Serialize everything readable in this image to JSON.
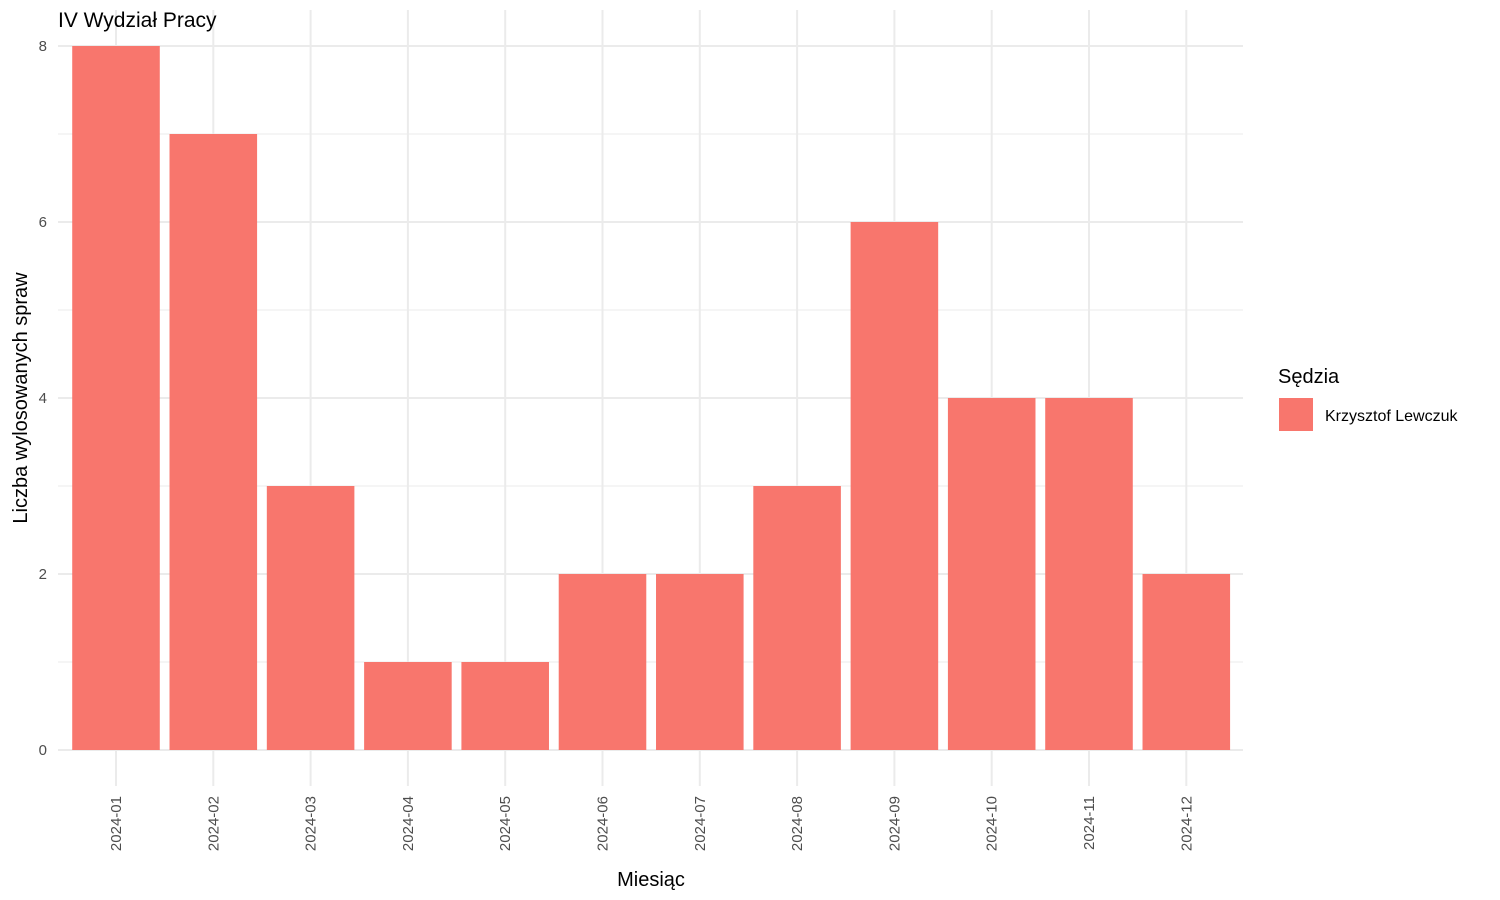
{
  "chart_data": {
    "type": "bar",
    "title": "IV Wydział Pracy",
    "xlabel": "Miesiąc",
    "ylabel": "Liczba wylosowanych spraw",
    "categories": [
      "2024-01",
      "2024-02",
      "2024-03",
      "2024-04",
      "2024-05",
      "2024-06",
      "2024-07",
      "2024-08",
      "2024-09",
      "2024-10",
      "2024-11",
      "2024-12"
    ],
    "series": [
      {
        "name": "Krzysztof Lewczuk",
        "values": [
          8,
          7,
          3,
          1,
          1,
          2,
          2,
          3,
          6,
          4,
          4,
          2
        ]
      }
    ],
    "ylim": [
      0,
      8
    ],
    "yticks": [
      0,
      2,
      4,
      6,
      8
    ],
    "grid": true,
    "legend": {
      "title": "Sędzia",
      "placement": "right"
    },
    "colors": {
      "bar": "#F8766D",
      "grid": "#ebebeb"
    }
  }
}
